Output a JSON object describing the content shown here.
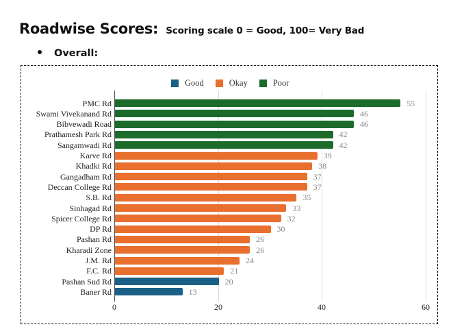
{
  "header": {
    "title": "Roadwise Scores:",
    "subtitle": "Scoring scale  0 = Good, 100= Very Bad",
    "section_bullet": "Overall:"
  },
  "legend": [
    {
      "label": "Good",
      "color": "#1a5f86"
    },
    {
      "label": "Okay",
      "color": "#e86f2e"
    },
    {
      "label": "Poor",
      "color": "#1c6b2a"
    }
  ],
  "chart_data": {
    "type": "bar",
    "orientation": "horizontal",
    "title": "",
    "xlabel": "",
    "ylabel": "",
    "xlim": [
      0,
      60
    ],
    "x_ticks": [
      0,
      20,
      40,
      60
    ],
    "grid": true,
    "legend_position": "top",
    "categories": [
      "PMC Rd",
      "Swami Vivekanand Rd",
      "Bibvewadi Road",
      "Prathamesh Park Rd",
      "Sangamwadi Rd",
      "Karve Rd",
      "Khadki Rd",
      "Gangadham Rd",
      "Deccan College Rd",
      "S.B. Rd",
      "Sinhagad Rd",
      "Spicer College Rd",
      "DP Rd",
      "Pashan Rd",
      "Kharadi Zone",
      "J.M. Rd",
      "F.C. Rd",
      "Pashan Sud Rd",
      "Baner Rd"
    ],
    "values": [
      55,
      46,
      46,
      42,
      42,
      39,
      38,
      37,
      37,
      35,
      33,
      32,
      30,
      26,
      26,
      24,
      21,
      20,
      13
    ],
    "classes": [
      "Poor",
      "Poor",
      "Poor",
      "Poor",
      "Poor",
      "Okay",
      "Okay",
      "Okay",
      "Okay",
      "Okay",
      "Okay",
      "Okay",
      "Okay",
      "Okay",
      "Okay",
      "Okay",
      "Okay",
      "Good",
      "Good"
    ],
    "series": [
      {
        "name": "Good",
        "color": "#1a5f86"
      },
      {
        "name": "Okay",
        "color": "#e86f2e"
      },
      {
        "name": "Poor",
        "color": "#1c6b2a"
      }
    ]
  }
}
